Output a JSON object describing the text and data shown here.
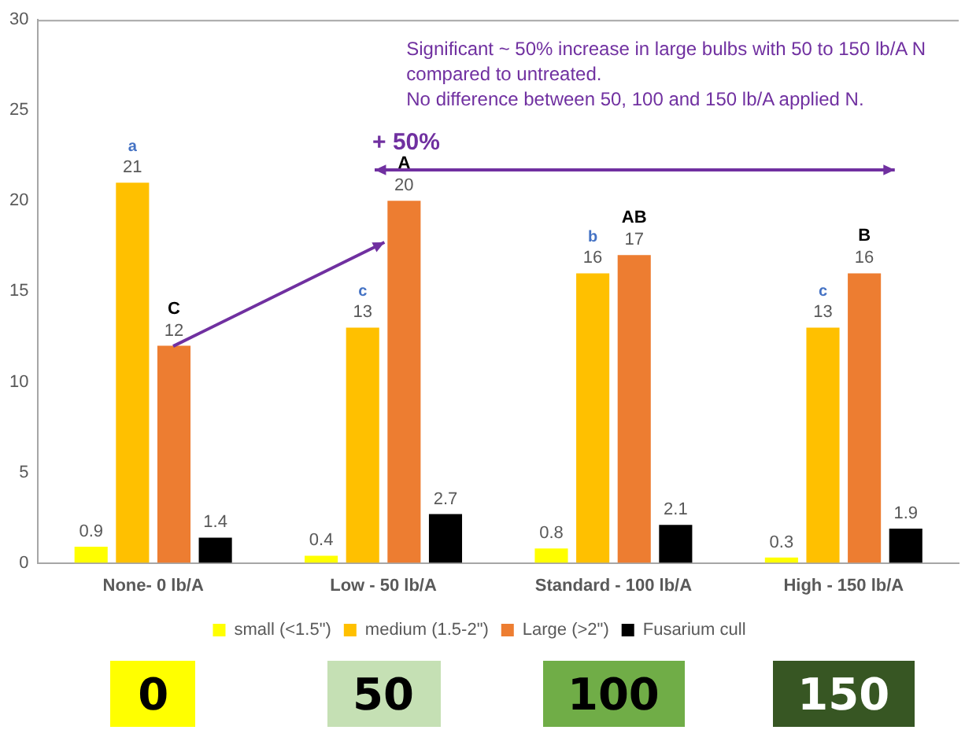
{
  "chart_data": {
    "type": "bar",
    "categories": [
      "None- 0 lb/A",
      "Low - 50 lb/A",
      "Standard - 100 lb/A",
      "High - 150 lb/A"
    ],
    "series": [
      {
        "name": "small (<1.5\")",
        "color": "#ffff00",
        "values": [
          0.9,
          0.4,
          0.8,
          0.3
        ]
      },
      {
        "name": "medium (1.5-2\")",
        "color": "#ffc000",
        "values": [
          21,
          13,
          16,
          13
        ]
      },
      {
        "name": "Large (>2\")",
        "color": "#ed7d31",
        "values": [
          12,
          20,
          17,
          16
        ]
      },
      {
        "name": "Fusarium cull",
        "color": "#000000",
        "values": [
          1.4,
          2.7,
          2.1,
          1.9
        ]
      }
    ],
    "ylim": [
      0,
      30
    ],
    "yticks": [
      0,
      5,
      10,
      15,
      20,
      25,
      30
    ],
    "grid": false,
    "legend": "bottom",
    "data_labels": true,
    "annotations": [
      "Significant ~ 50% increase in large bulbs with 50 to 150 lb/A N compared to untreated.\nNo difference between 50, 100 and 150 lb/A applied N.",
      "+ 50%",
      "0",
      "50",
      "100",
      "150",
      {
        "text": "a",
        "x": "None- 0 lb/A",
        "y": 21
      },
      {
        "text": "C",
        "x": "None- 0 lb/A",
        "y": 12
      },
      {
        "text": "c",
        "x": "Low - 50 lb/A",
        "y": 13
      },
      {
        "text": "A",
        "x": "Low - 50 lb/A",
        "y": 20
      },
      {
        "text": "b",
        "x": "Standard - 100 lb/A",
        "y": 16
      },
      {
        "text": "AB",
        "x": "Standard - 100 lb/A",
        "y": 17
      },
      {
        "text": "c",
        "x": "High - 150 lb/A",
        "y": 13
      },
      {
        "text": "B",
        "x": "High - 150 lb/A",
        "y": 16
      }
    ]
  }
}
